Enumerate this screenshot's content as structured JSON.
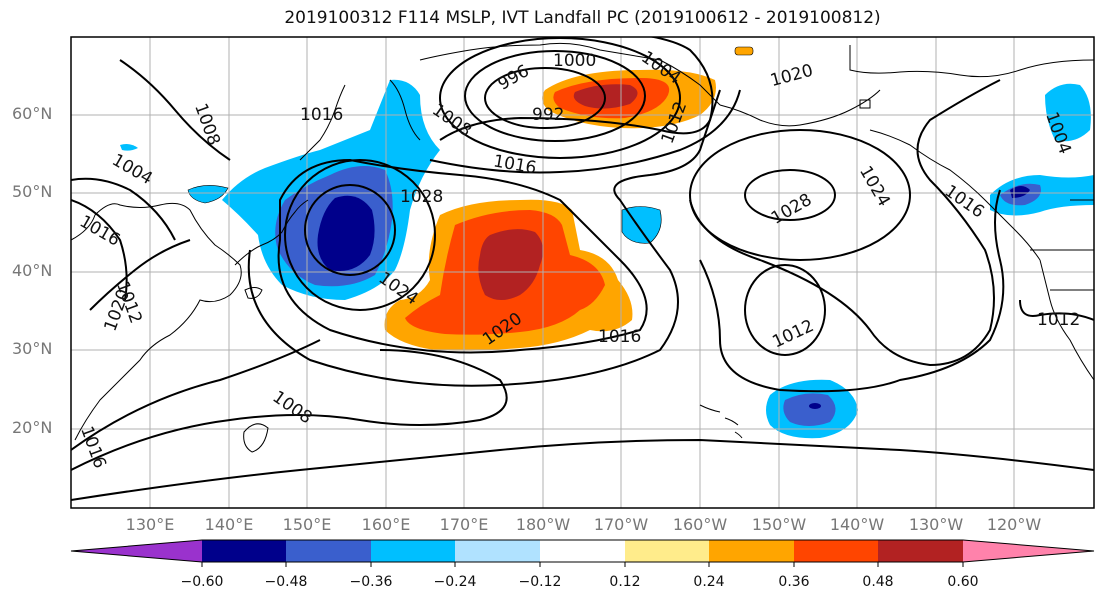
{
  "title": "2019100312 F114 MSLP, IVT Landfall PC (2019100612 - 2019100812)",
  "latitude_labels": [
    "60°N",
    "50°N",
    "40°N",
    "30°N",
    "20°N"
  ],
  "longitude_labels": [
    "130°E",
    "140°E",
    "150°E",
    "160°E",
    "170°E",
    "180°W",
    "170°W",
    "160°W",
    "150°W",
    "140°W",
    "130°W",
    "120°W"
  ],
  "contour_labels": [
    "1000",
    "996",
    "992",
    "1004",
    "1008",
    "1012",
    "1016",
    "1020",
    "1024",
    "1028",
    "1016",
    "1020",
    "1028",
    "1024",
    "1012",
    "1016",
    "1008",
    "1004",
    "1016",
    "1020",
    "1012",
    "1012",
    "1016",
    "1004",
    "1008",
    "1016"
  ],
  "colorbar": {
    "tick_labels": [
      "−0.60",
      "−0.48",
      "−0.36",
      "−0.24",
      "−0.12",
      "0.12",
      "0.24",
      "0.36",
      "0.48",
      "0.60"
    ],
    "colors": [
      "#9a32cd",
      "#00008b",
      "#3a5fcd",
      "#00bfff",
      "#b0e2ff",
      "#ffffff",
      "#ffec8b",
      "#ffa500",
      "#ff4500",
      "#b22222",
      "#ff82ab"
    ]
  },
  "shading_colors": {
    "neg_strong": "#00008b",
    "neg_mid": "#3a5fcd",
    "neg_weak": "#00bfff",
    "pos_weak": "#ffa500",
    "pos_mid": "#ff4500",
    "pos_strong": "#b22222"
  }
}
